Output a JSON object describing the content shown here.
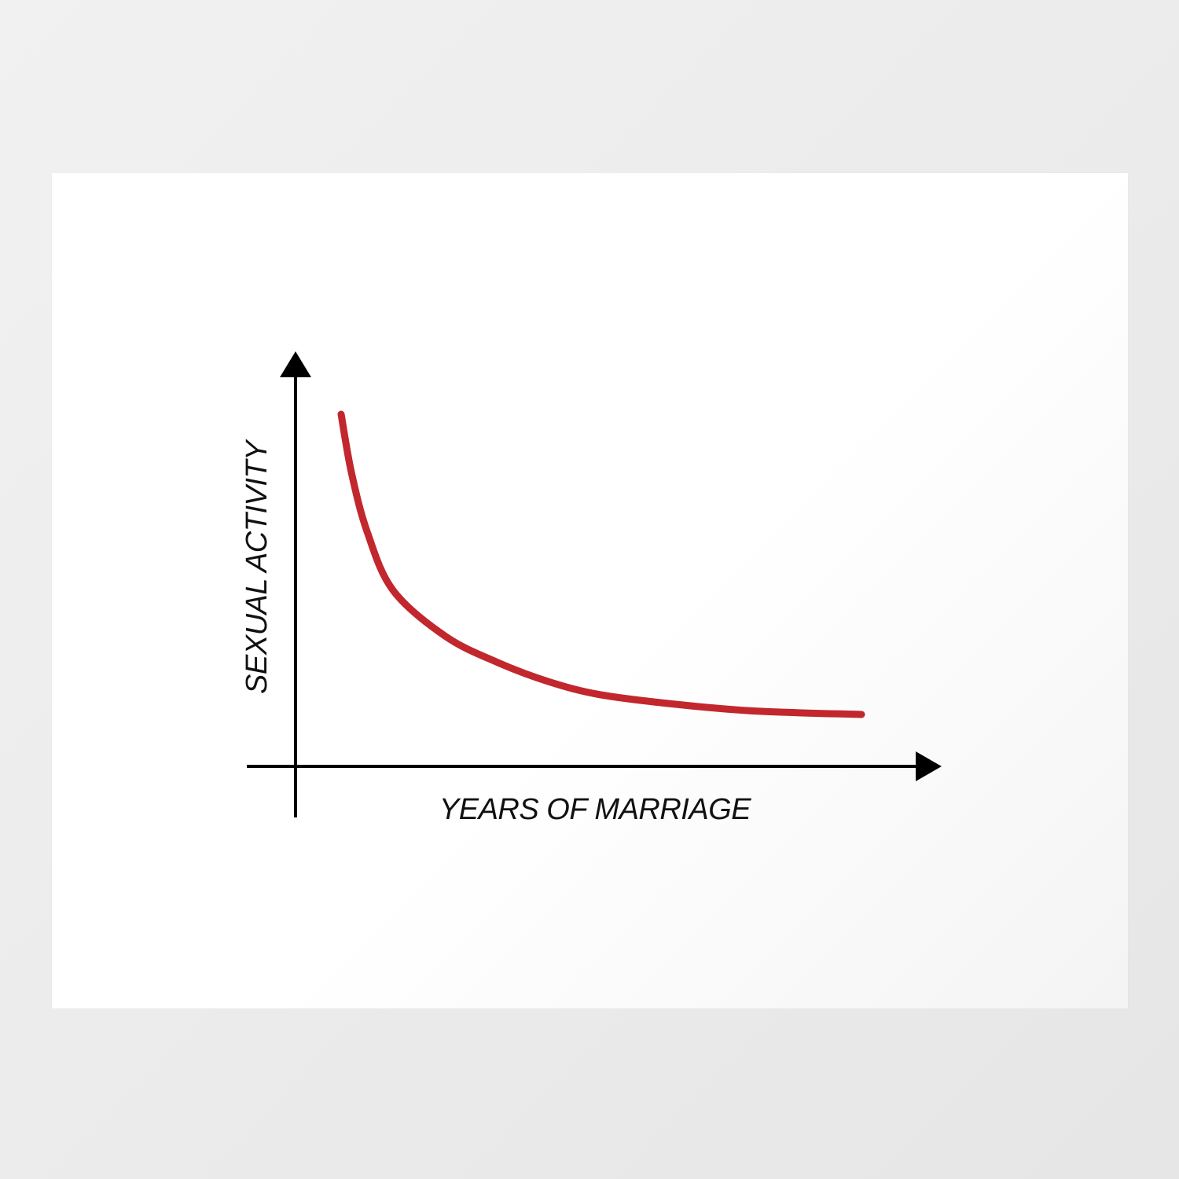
{
  "chart_data": {
    "type": "line",
    "title": "",
    "xlabel": "YEARS OF MARRIAGE",
    "ylabel": "SEXUAL ACTIVITY",
    "grid": false,
    "axis_ticks": false,
    "series": [
      {
        "name": "",
        "color": "#c1272d",
        "points": [
          [
            0.0,
            1.0
          ],
          [
            0.2,
            0.82
          ],
          [
            0.5,
            0.64
          ],
          [
            1.0,
            0.46
          ],
          [
            2.0,
            0.32
          ],
          [
            3.0,
            0.24
          ],
          [
            4.0,
            0.18
          ],
          [
            5.0,
            0.14
          ],
          [
            6.5,
            0.11
          ],
          [
            8.0,
            0.09
          ],
          [
            10.0,
            0.08
          ]
        ]
      }
    ],
    "axis_color": "#000000"
  }
}
